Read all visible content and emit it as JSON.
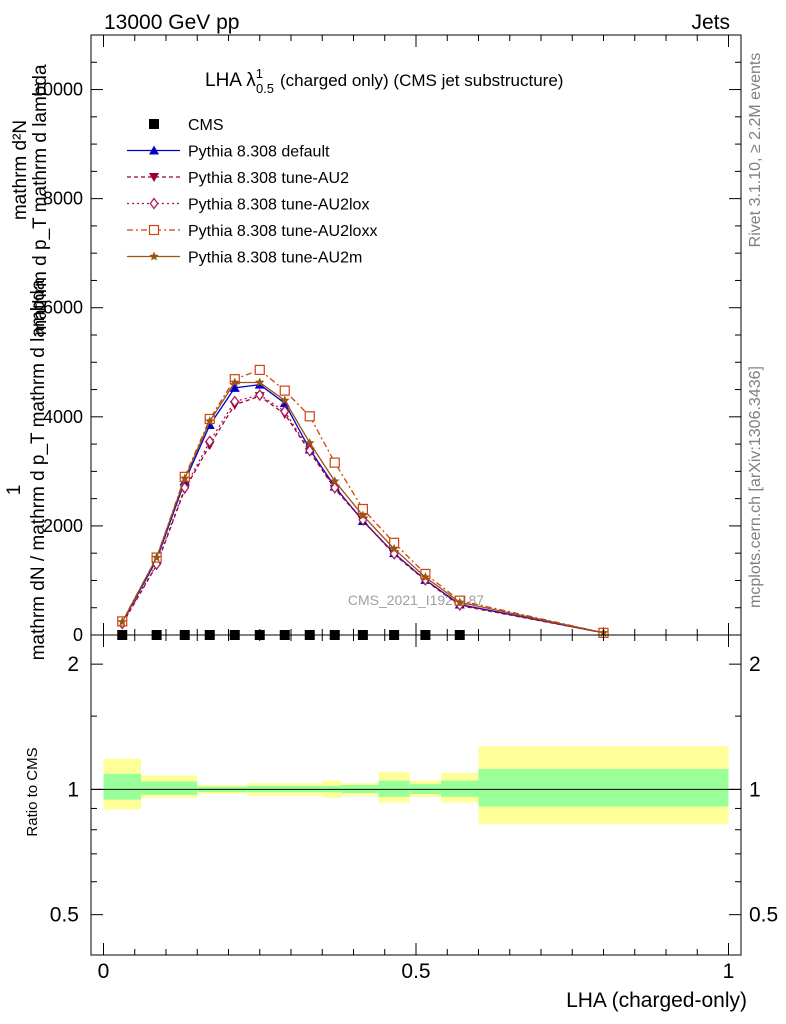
{
  "header": {
    "left": "13000 GeV pp",
    "right": "Jets"
  },
  "side_labels": {
    "rivet": "Rivet 3.1.10, ≥ 2.2M events",
    "mcplots": "mcplots.cern.ch [arXiv:1306.3436]"
  },
  "chart_data": [
    {
      "type": "line",
      "title_main": "LHA λ",
      "title_sup": "1",
      "title_sub": "0.5",
      "title_rest": "(charged only) (CMS jet substructure)",
      "xlabel": "LHA (charged-only)",
      "ylabel_top": "mathrm d²N",
      "ylabel_top_bottom": "mathrm d p_T mathrm d lambda",
      "ylabel_one": "1",
      "ylabel_bottom": "mathrm dN / mathrm d p_T mathrm d lambda",
      "watermark": "CMS_2021_I1920187",
      "xlim": [
        -0.02,
        1.02
      ],
      "ylim": [
        0,
        11000
      ],
      "yticks": [
        0,
        2000,
        4000,
        6000,
        8000,
        10000
      ],
      "ytick_labels": [
        "0",
        "2000",
        "4000",
        "6000",
        "8000",
        "10000"
      ],
      "legend_position": "top-left",
      "cms_data": {
        "name": "CMS",
        "x": [
          0.03,
          0.085,
          0.13,
          0.17,
          0.21,
          0.25,
          0.29,
          0.33,
          0.37,
          0.415,
          0.465,
          0.515,
          0.57
        ],
        "y": [
          0,
          0,
          0,
          0,
          0,
          0,
          0,
          0,
          0,
          0,
          0,
          0,
          0
        ]
      },
      "series": [
        {
          "name": "Pythia 8.308 default",
          "color": "#0000cc",
          "dash": "",
          "marker": "triangle-up",
          "x": [
            0.03,
            0.085,
            0.13,
            0.17,
            0.21,
            0.25,
            0.29,
            0.33,
            0.37,
            0.415,
            0.465,
            0.515,
            0.57,
            0.8
          ],
          "y": [
            230,
            1380,
            2820,
            3850,
            4530,
            4590,
            4250,
            3400,
            2720,
            2090,
            1500,
            1010,
            560,
            40
          ]
        },
        {
          "name": "Pythia 8.308 tune-AU2",
          "color": "#990033",
          "dash": "4,3",
          "marker": "triangle-down",
          "x": [
            0.03,
            0.085,
            0.13,
            0.17,
            0.21,
            0.25,
            0.29,
            0.33,
            0.37,
            0.415,
            0.465,
            0.515,
            0.57,
            0.8
          ],
          "y": [
            200,
            1280,
            2670,
            3480,
            4220,
            4380,
            4050,
            3360,
            2680,
            2100,
            1480,
            1000,
            540,
            40
          ]
        },
        {
          "name": "Pythia 8.308 tune-AU2lox",
          "color": "#aa1155",
          "dash": "2,3",
          "marker": "diamond-open",
          "x": [
            0.03,
            0.085,
            0.13,
            0.17,
            0.21,
            0.25,
            0.29,
            0.33,
            0.37,
            0.415,
            0.465,
            0.515,
            0.57,
            0.8
          ],
          "y": [
            210,
            1300,
            2700,
            3550,
            4280,
            4400,
            4100,
            3380,
            2700,
            2110,
            1490,
            1010,
            550,
            40
          ]
        },
        {
          "name": "Pythia 8.308 tune-AU2loxx",
          "color": "#cc4411",
          "dash": "6,3,2,3",
          "marker": "square-open",
          "x": [
            0.03,
            0.085,
            0.13,
            0.17,
            0.21,
            0.25,
            0.29,
            0.33,
            0.37,
            0.415,
            0.465,
            0.515,
            0.57,
            0.8
          ],
          "y": [
            250,
            1420,
            2900,
            3960,
            4690,
            4860,
            4480,
            4010,
            3160,
            2310,
            1690,
            1120,
            630,
            40
          ]
        },
        {
          "name": "Pythia 8.308 tune-AU2m",
          "color": "#995511",
          "dash": "",
          "marker": "star",
          "x": [
            0.03,
            0.085,
            0.13,
            0.17,
            0.21,
            0.25,
            0.29,
            0.33,
            0.37,
            0.415,
            0.465,
            0.515,
            0.57,
            0.8
          ],
          "y": [
            240,
            1420,
            2870,
            3920,
            4630,
            4630,
            4300,
            3520,
            2820,
            2190,
            1580,
            1060,
            600,
            40
          ]
        }
      ]
    },
    {
      "type": "area",
      "ylabel": "Ratio to CMS",
      "xlim": [
        -0.02,
        1.02
      ],
      "ylim": [
        0.4,
        2.35
      ],
      "log_y": true,
      "yticks": [
        0.5,
        1,
        2
      ],
      "ytick_labels": [
        "0.5",
        "1",
        "2"
      ],
      "xticks": [
        0,
        0.5,
        1
      ],
      "xtick_labels": [
        "0",
        "0.5",
        "1"
      ],
      "reference_line": 1,
      "band_colors": {
        "inner": "#99ff99",
        "outer": "#ffff99"
      },
      "bins": [
        {
          "xlow": 0.0,
          "xhigh": 0.06,
          "inner": [
            0.945,
            1.09
          ],
          "outer": [
            0.895,
            1.185
          ]
        },
        {
          "xlow": 0.06,
          "xhigh": 0.15,
          "inner": [
            0.97,
            1.045
          ],
          "outer": [
            0.955,
            1.08
          ]
        },
        {
          "xlow": 0.15,
          "xhigh": 0.23,
          "inner": [
            0.985,
            1.015
          ],
          "outer": [
            0.975,
            1.025
          ]
        },
        {
          "xlow": 0.23,
          "xhigh": 0.35,
          "inner": [
            0.985,
            1.02
          ],
          "outer": [
            0.965,
            1.035
          ]
        },
        {
          "xlow": 0.35,
          "xhigh": 0.38,
          "inner": [
            0.985,
            1.02
          ],
          "outer": [
            0.955,
            1.05
          ]
        },
        {
          "xlow": 0.38,
          "xhigh": 0.44,
          "inner": [
            0.98,
            1.025
          ],
          "outer": [
            0.965,
            1.035
          ]
        },
        {
          "xlow": 0.44,
          "xhigh": 0.49,
          "inner": [
            0.96,
            1.05
          ],
          "outer": [
            0.93,
            1.1
          ]
        },
        {
          "xlow": 0.49,
          "xhigh": 0.54,
          "inner": [
            0.975,
            1.03
          ],
          "outer": [
            0.96,
            1.05
          ]
        },
        {
          "xlow": 0.54,
          "xhigh": 0.6,
          "inner": [
            0.96,
            1.05
          ],
          "outer": [
            0.93,
            1.095
          ]
        },
        {
          "xlow": 0.6,
          "xhigh": 1.0,
          "inner": [
            0.91,
            1.12
          ],
          "outer": [
            0.825,
            1.27
          ]
        }
      ]
    }
  ]
}
